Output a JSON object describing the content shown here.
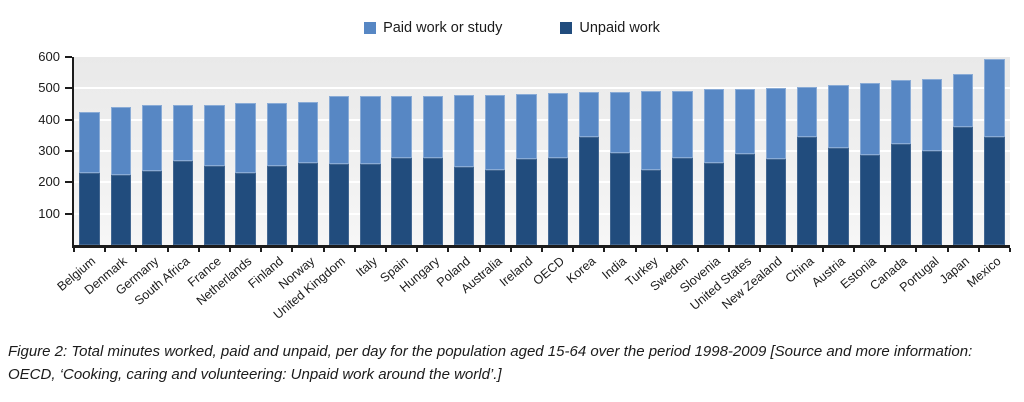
{
  "legend": {
    "items": [
      {
        "label": "Paid work or study"
      },
      {
        "label": "Unpaid work"
      }
    ]
  },
  "chart_data": {
    "type": "bar",
    "stacked": true,
    "unit": "minutes per day",
    "stack_order_bottom_to_top": [
      "Unpaid work",
      "Paid work or study"
    ],
    "categories": [
      "Belgium",
      "Denmark",
      "Germany",
      "South Africa",
      "France",
      "Netherlands",
      "Finland",
      "Norway",
      "United Kingdom",
      "Italy",
      "Spain",
      "Hungary",
      "Poland",
      "Australia",
      "Ireland",
      "OECD",
      "Korea",
      "India",
      "Turkey",
      "Sweden",
      "Slovenia",
      "United States",
      "New Zealand",
      "China",
      "Austria",
      "Estonia",
      "Canada",
      "Portugal",
      "Japan",
      "Mexico"
    ],
    "series": [
      {
        "name": "Paid work or study",
        "color": "#5787c4",
        "values": [
          195,
          217,
          210,
          179,
          196,
          224,
          201,
          192,
          216,
          218,
          197,
          198,
          230,
          242,
          209,
          209,
          144,
          194,
          252,
          215,
          234,
          209,
          227,
          161,
          202,
          232,
          205,
          231,
          168,
          248
        ]
      },
      {
        "name": "Unpaid work",
        "color": "#214c7d",
        "values": [
          230,
          225,
          236,
          268,
          252,
          230,
          253,
          263,
          259,
          257,
          279,
          279,
          249,
          238,
          274,
          277,
          345,
          295,
          238,
          277,
          263,
          290,
          273,
          344,
          310,
          286,
          321,
          299,
          378,
          346
        ]
      }
    ],
    "totals": [
      425,
      442,
      446,
      447,
      448,
      454,
      454,
      455,
      475,
      475,
      476,
      477,
      479,
      480,
      483,
      486,
      489,
      489,
      490,
      492,
      497,
      499,
      500,
      505,
      512,
      518,
      526,
      530,
      546,
      594
    ],
    "ylim": [
      0,
      600
    ],
    "yticks": [
      100,
      200,
      300,
      400,
      500,
      600
    ],
    "grid": "horizontal-white-on-gray",
    "legend_position": "top-center",
    "bar_label_rotation_deg": -40
  },
  "caption": {
    "line1": "Figure 2: Total minutes worked, paid and unpaid, per day for the population aged 15-64 over the period 1998-2009 [Source and more information:",
    "line2": "OECD, ‘Cooking, caring and volunteering: Unpaid work around the world’.]"
  }
}
